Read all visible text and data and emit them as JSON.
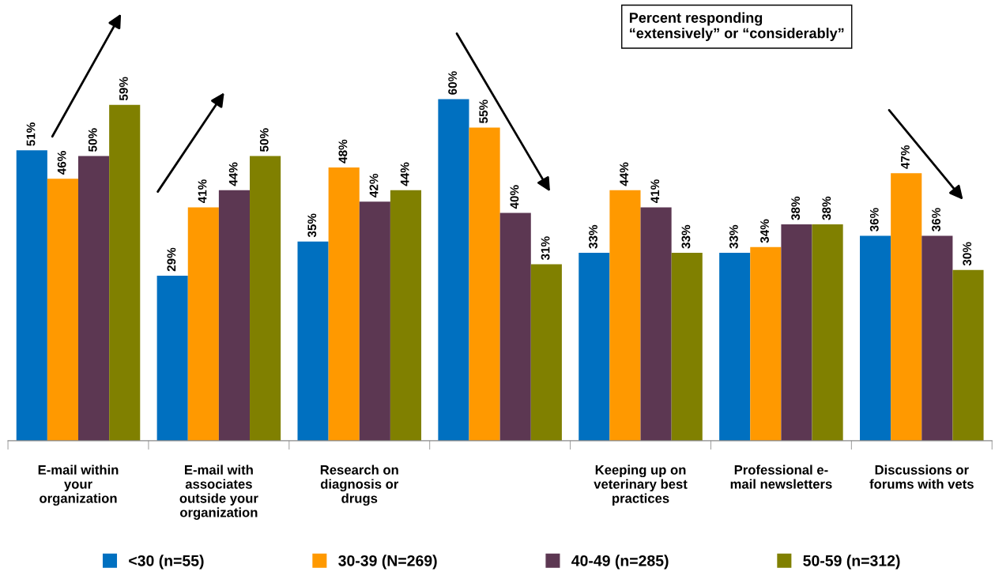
{
  "chart_data": {
    "type": "bar",
    "categories": [
      "E-mail within\nyour\norganization",
      "E-mail with\nassociates\noutside your\norganization",
      "Research on\ndiagnosis or\ndrugs",
      null,
      "Keeping up on\nveterinary best\npractices",
      "Professional e-\nmail newsletters",
      "Discussions or\nforums with vets"
    ],
    "series": [
      {
        "name": "<30 (n=55)",
        "color": "#0070c0",
        "values": [
          51,
          29,
          35,
          60,
          33,
          33,
          36
        ],
        "value_labels": [
          "51%",
          "29%",
          "35%",
          "60%",
          "33%",
          "33%",
          "36%"
        ]
      },
      {
        "name": "30-39 (N=269)",
        "color": "#ff9900",
        "values": [
          46,
          41,
          48,
          55,
          44,
          34,
          47
        ],
        "value_labels": [
          "46%",
          "41%",
          "48%",
          "55%",
          "44%",
          "34%",
          "47%"
        ]
      },
      {
        "name": "40-49 (n=285)",
        "color": "#5c3752",
        "values": [
          50,
          44,
          42,
          40,
          41,
          38,
          36
        ],
        "value_labels": [
          "50%",
          "44%",
          "42%",
          "40%",
          "41%",
          "38%",
          "36%"
        ]
      },
      {
        "name": "50-59 (n=312)",
        "color": "#808000",
        "values": [
          59,
          50,
          44,
          31,
          33,
          38,
          30
        ],
        "value_labels": [
          "59%",
          "50%",
          "44%",
          "31%",
          "33%",
          "38%",
          "30%"
        ]
      }
    ],
    "annotations": [
      "Percent responding\n“extensively” or “considerably”"
    ],
    "legend": "bottom",
    "grid": false
  }
}
